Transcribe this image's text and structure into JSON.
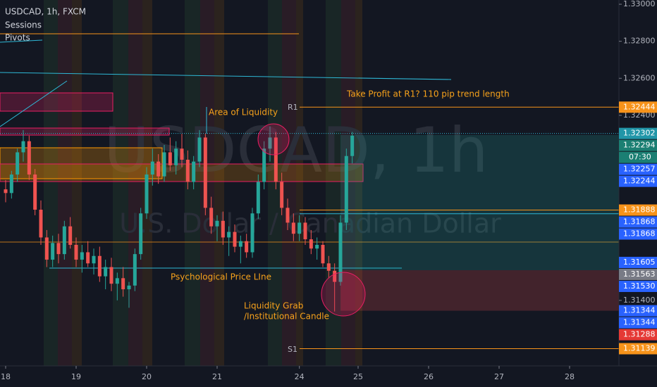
{
  "chart_data": {
    "type": "candlestick",
    "title": "USDCAD, 1h, FXCM",
    "indicators": [
      "Sessions",
      "Pivots"
    ],
    "watermark": "USDCAD, 1h",
    "watermark_subtitle": "U.S. Dollar / Canadian Dollar",
    "annotations": {
      "take_profit": "Take Profit at R1? 110 pip trend length",
      "r1": "R1",
      "s1": "S1",
      "liquidity_area": "Area of Liquidity",
      "psychological": "Psychological Price LIne",
      "grab_1": "Liquidity Grab",
      "grab_2": "/Institutional Candle"
    },
    "countdown": "07:30",
    "x": [
      0,
      1,
      2,
      3,
      4,
      5,
      6,
      7,
      8,
      9,
      10,
      11,
      12,
      13,
      14,
      15,
      16,
      17,
      18,
      19,
      20,
      21,
      22,
      23,
      24,
      25,
      26,
      27,
      28,
      29,
      30,
      31,
      32,
      33,
      34,
      35,
      36,
      37,
      38,
      39,
      40,
      41,
      42,
      43,
      44,
      45,
      46,
      47,
      48,
      49,
      50,
      51,
      52,
      53,
      54,
      55,
      56,
      57,
      58,
      59
    ],
    "open": [
      1.32,
      1.3198,
      1.3208,
      1.322,
      1.3226,
      1.3208,
      1.3189,
      1.3174,
      1.3162,
      1.3171,
      1.3165,
      1.318,
      1.317,
      1.3162,
      1.3166,
      1.316,
      1.3164,
      1.3153,
      1.3158,
      1.3149,
      1.3152,
      1.3146,
      1.3148,
      1.3165,
      1.3187,
      1.3208,
      1.3215,
      1.3207,
      1.322,
      1.3213,
      1.3222,
      1.3216,
      1.3204,
      1.3215,
      1.3228,
      1.319,
      1.318,
      1.3183,
      1.3174,
      1.3177,
      1.3169,
      1.3172,
      1.3166,
      1.3187,
      1.3204,
      1.3222,
      1.3228,
      1.3204,
      1.319,
      1.3182,
      1.3176,
      1.3182,
      1.3173,
      1.3168,
      1.317,
      1.316,
      1.3156,
      1.315,
      1.3182,
      1.3218
    ],
    "high": [
      1.3205,
      1.321,
      1.3222,
      1.3232,
      1.3229,
      1.3211,
      1.3194,
      1.3178,
      1.3175,
      1.3176,
      1.3183,
      1.3185,
      1.3174,
      1.317,
      1.3172,
      1.3168,
      1.3169,
      1.3162,
      1.3163,
      1.3155,
      1.3158,
      1.315,
      1.3168,
      1.319,
      1.3212,
      1.3222,
      1.3219,
      1.3224,
      1.3228,
      1.3226,
      1.323,
      1.3221,
      1.3218,
      1.3232,
      1.323,
      1.3196,
      1.3186,
      1.3188,
      1.318,
      1.3181,
      1.3175,
      1.3176,
      1.319,
      1.3208,
      1.3226,
      1.3234,
      1.3231,
      1.3209,
      1.3195,
      1.3187,
      1.3186,
      1.3185,
      1.3178,
      1.3174,
      1.3172,
      1.3164,
      1.316,
      1.3186,
      1.3222,
      1.3231
    ],
    "low": [
      1.3193,
      1.3195,
      1.3204,
      1.3215,
      1.3205,
      1.3186,
      1.317,
      1.3158,
      1.3158,
      1.316,
      1.3162,
      1.3168,
      1.3158,
      1.3155,
      1.3158,
      1.3154,
      1.315,
      1.3146,
      1.3145,
      1.314,
      1.3142,
      1.3136,
      1.3145,
      1.3162,
      1.3184,
      1.3202,
      1.3203,
      1.3204,
      1.321,
      1.3208,
      1.3212,
      1.32,
      1.32,
      1.3212,
      1.3186,
      1.3176,
      1.3172,
      1.317,
      1.3164,
      1.3166,
      1.316,
      1.3163,
      1.3163,
      1.3184,
      1.32,
      1.3215,
      1.32,
      1.3186,
      1.3178,
      1.3172,
      1.3172,
      1.317,
      1.3165,
      1.3162,
      1.3158,
      1.3152,
      1.3134,
      1.3148,
      1.3178,
      1.3214
    ],
    "close": [
      1.3198,
      1.3208,
      1.322,
      1.3226,
      1.3208,
      1.3189,
      1.3174,
      1.3162,
      1.3171,
      1.3165,
      1.318,
      1.317,
      1.3162,
      1.3166,
      1.316,
      1.3164,
      1.3153,
      1.3158,
      1.3149,
      1.3152,
      1.3146,
      1.3148,
      1.3165,
      1.3187,
      1.3208,
      1.3215,
      1.3207,
      1.322,
      1.3213,
      1.3222,
      1.3216,
      1.3204,
      1.3215,
      1.3228,
      1.319,
      1.318,
      1.3183,
      1.3174,
      1.3177,
      1.3169,
      1.3172,
      1.3166,
      1.3187,
      1.3204,
      1.3222,
      1.3228,
      1.3204,
      1.319,
      1.3182,
      1.3176,
      1.3182,
      1.3173,
      1.3168,
      1.317,
      1.316,
      1.3156,
      1.315,
      1.3182,
      1.3218,
      1.3229
    ],
    "up_color": "#26a69a",
    "down_color": "#ef5350",
    "xlim": [
      -0.96,
      104.4
    ],
    "xticks": [
      {
        "value": 0,
        "label": "18"
      },
      {
        "value": 12,
        "label": "19"
      },
      {
        "value": 24,
        "label": "20"
      },
      {
        "value": 36,
        "label": "21"
      },
      {
        "value": 50,
        "label": "24"
      },
      {
        "value": 60,
        "label": "25"
      },
      {
        "value": 72,
        "label": "26"
      },
      {
        "value": 84,
        "label": "27"
      },
      {
        "value": 96,
        "label": "28"
      }
    ],
    "ylim": [
      1.31046,
      1.33023
    ],
    "yticks": [
      {
        "value": 1.33,
        "label": "1.33000"
      },
      {
        "value": 1.328,
        "label": "1.32800"
      },
      {
        "value": 1.326,
        "label": "1.32600"
      },
      {
        "value": 1.324,
        "label": "1.32400"
      },
      {
        "value": 1.314,
        "label": "1.31400"
      }
    ],
    "levels": [
      {
        "value": 1.32444,
        "color": "#f7931a"
      },
      {
        "value": 1.31888,
        "color": "#f7931a"
      },
      {
        "value": 1.31868,
        "color": "#2eb8d6"
      },
      {
        "value": 1.31139,
        "color": "#f7931a"
      }
    ],
    "position": {
      "target": 1.32294,
      "entry": 1.31563,
      "stop": 1.31344
    },
    "last_price": 1.32302,
    "price_tags": [
      {
        "value": 1.32444,
        "label": "1.32444",
        "color": "#f7931a"
      },
      {
        "value": 1.32302,
        "label": "1.32302",
        "color": "#2196a8"
      },
      {
        "value": 1.32294,
        "label": "1.32294",
        "color": "#1b7f73"
      },
      {
        "value": 1.32257,
        "label": "1.32257",
        "color": "#2962ff"
      },
      {
        "value": 1.32244,
        "label": "1.32244",
        "color": "#2962ff"
      },
      {
        "value": 1.31888,
        "label": "1.31888",
        "color": "#f7931a"
      },
      {
        "value": 1.31868,
        "label": "1.31868",
        "color": "#2962ff"
      },
      {
        "value": 1.31868,
        "label": "1.31868",
        "color": "#2962ff"
      },
      {
        "value": 1.31605,
        "label": "1.31605",
        "color": "#2962ff"
      },
      {
        "value": 1.31563,
        "label": "1.31563",
        "color": "#787b86"
      },
      {
        "value": 1.3153,
        "label": "1.31530",
        "color": "#2962ff"
      },
      {
        "value": 1.31344,
        "label": "1.31344",
        "color": "#2962ff"
      },
      {
        "value": 1.31344,
        "label": "1.31344",
        "color": "#2962ff"
      },
      {
        "value": 1.31288,
        "label": "1.31288",
        "color": "#e53935"
      },
      {
        "value": 1.31139,
        "label": "1.31139",
        "color": "#f7931a"
      }
    ]
  }
}
